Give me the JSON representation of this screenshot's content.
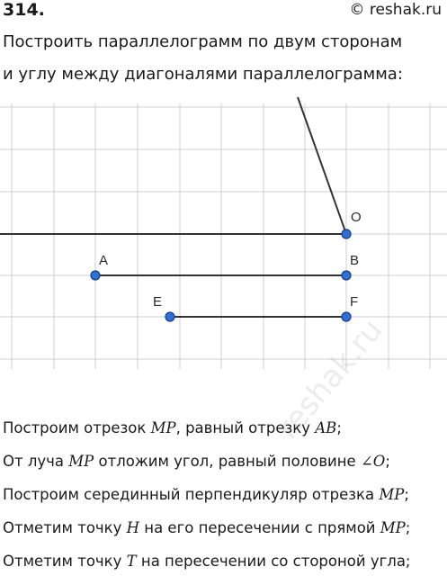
{
  "header": {
    "problem_number": "314.",
    "site": "© reshak.ru"
  },
  "statement": {
    "line1": "Построить параллелограмм по двум сторонам",
    "line2": "и углу между диагоналями параллелограмма:"
  },
  "figure": {
    "points": {
      "O": "O",
      "A": "A",
      "B": "B",
      "E": "E",
      "F": "F"
    },
    "point_color": "#2f6fd6",
    "line_color": "#333333",
    "grid_color": "#cfcfcf"
  },
  "steps": {
    "s1": {
      "t1": "Построим отрезок ",
      "m1": "MP",
      "t2": ", равный отрезку ",
      "m2": "AB",
      "t3": ";"
    },
    "s2": {
      "t1": "От луча ",
      "m1": "MP",
      "t2": " отложим угол, равный половине ",
      "m2": "∠O",
      "t3": ";"
    },
    "s3": {
      "t1": "Построим серединный перпендикуляр отрезка ",
      "m1": "MP",
      "t2": ";"
    },
    "s4": {
      "t1": "Отметим точку ",
      "m1": "H",
      "t2": " на его пересечении с прямой ",
      "m2": "MP",
      "t3": ";"
    },
    "s5": {
      "t1": "Отметим точку ",
      "m1": "T",
      "t2": " на пересечении со стороной угла;"
    }
  },
  "watermark": "reshak.ru"
}
